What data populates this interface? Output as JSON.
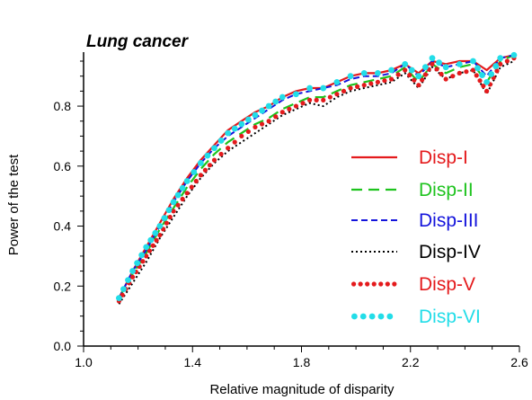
{
  "chart_data": {
    "type": "line",
    "title": "Lung cancer",
    "xlabel": "Relative magnitude of disparity",
    "ylabel": "Power of the test",
    "xlim": [
      1.0,
      2.6
    ],
    "ylim": [
      0.0,
      0.98
    ],
    "xticks": [
      "1.0",
      "1.4",
      "1.8",
      "2.2",
      "2.6"
    ],
    "yticks": [
      "0.0",
      "0.2",
      "0.4",
      "0.6",
      "0.8"
    ],
    "legend_position": "right",
    "x": [
      1.13,
      1.18,
      1.23,
      1.28,
      1.33,
      1.38,
      1.43,
      1.48,
      1.53,
      1.58,
      1.63,
      1.68,
      1.73,
      1.78,
      1.83,
      1.88,
      1.93,
      1.98,
      2.03,
      2.08,
      2.13,
      2.18,
      2.23,
      2.28,
      2.33,
      2.38,
      2.43,
      2.48,
      2.53,
      2.58
    ],
    "series": [
      {
        "name": "Disp-I",
        "color": "#e41a1c",
        "style": "solid",
        "values": [
          0.16,
          0.25,
          0.33,
          0.41,
          0.49,
          0.56,
          0.62,
          0.67,
          0.72,
          0.75,
          0.78,
          0.8,
          0.83,
          0.85,
          0.86,
          0.86,
          0.88,
          0.9,
          0.91,
          0.91,
          0.92,
          0.94,
          0.91,
          0.95,
          0.94,
          0.95,
          0.95,
          0.92,
          0.96,
          0.97
        ]
      },
      {
        "name": "Disp-II",
        "color": "#1ec31e",
        "style": "longdash",
        "values": [
          0.16,
          0.24,
          0.31,
          0.39,
          0.46,
          0.53,
          0.59,
          0.64,
          0.68,
          0.71,
          0.74,
          0.76,
          0.79,
          0.81,
          0.83,
          0.83,
          0.85,
          0.87,
          0.88,
          0.89,
          0.9,
          0.93,
          0.88,
          0.94,
          0.91,
          0.93,
          0.94,
          0.88,
          0.95,
          0.97
        ]
      },
      {
        "name": "Disp-III",
        "color": "#1414dc",
        "style": "dash",
        "values": [
          0.16,
          0.25,
          0.32,
          0.4,
          0.48,
          0.55,
          0.61,
          0.66,
          0.7,
          0.73,
          0.76,
          0.79,
          0.82,
          0.84,
          0.85,
          0.86,
          0.87,
          0.89,
          0.9,
          0.9,
          0.91,
          0.94,
          0.9,
          0.95,
          0.93,
          0.94,
          0.95,
          0.9,
          0.96,
          0.97
        ]
      },
      {
        "name": "Disp-IV",
        "color": "#000000",
        "style": "dot",
        "values": [
          0.14,
          0.21,
          0.28,
          0.36,
          0.43,
          0.5,
          0.56,
          0.61,
          0.65,
          0.68,
          0.71,
          0.74,
          0.77,
          0.79,
          0.81,
          0.8,
          0.83,
          0.85,
          0.86,
          0.87,
          0.88,
          0.91,
          0.86,
          0.93,
          0.89,
          0.91,
          0.92,
          0.84,
          0.93,
          0.95
        ]
      },
      {
        "name": "Disp-V",
        "color": "#e41a1c",
        "style": "bigdot",
        "values": [
          0.15,
          0.23,
          0.3,
          0.37,
          0.45,
          0.51,
          0.57,
          0.62,
          0.66,
          0.7,
          0.73,
          0.75,
          0.78,
          0.8,
          0.82,
          0.82,
          0.84,
          0.86,
          0.87,
          0.88,
          0.89,
          0.92,
          0.87,
          0.94,
          0.89,
          0.91,
          0.92,
          0.85,
          0.94,
          0.96
        ]
      },
      {
        "name": "Disp-VI",
        "color": "#22dde8",
        "style": "biggerdot",
        "values": [
          0.16,
          0.25,
          0.33,
          0.4,
          0.48,
          0.55,
          0.61,
          0.66,
          0.71,
          0.74,
          0.77,
          0.8,
          0.83,
          0.84,
          0.86,
          0.86,
          0.88,
          0.9,
          0.91,
          0.91,
          0.92,
          0.94,
          0.9,
          0.96,
          0.93,
          0.94,
          0.95,
          0.88,
          0.96,
          0.97
        ]
      }
    ]
  }
}
